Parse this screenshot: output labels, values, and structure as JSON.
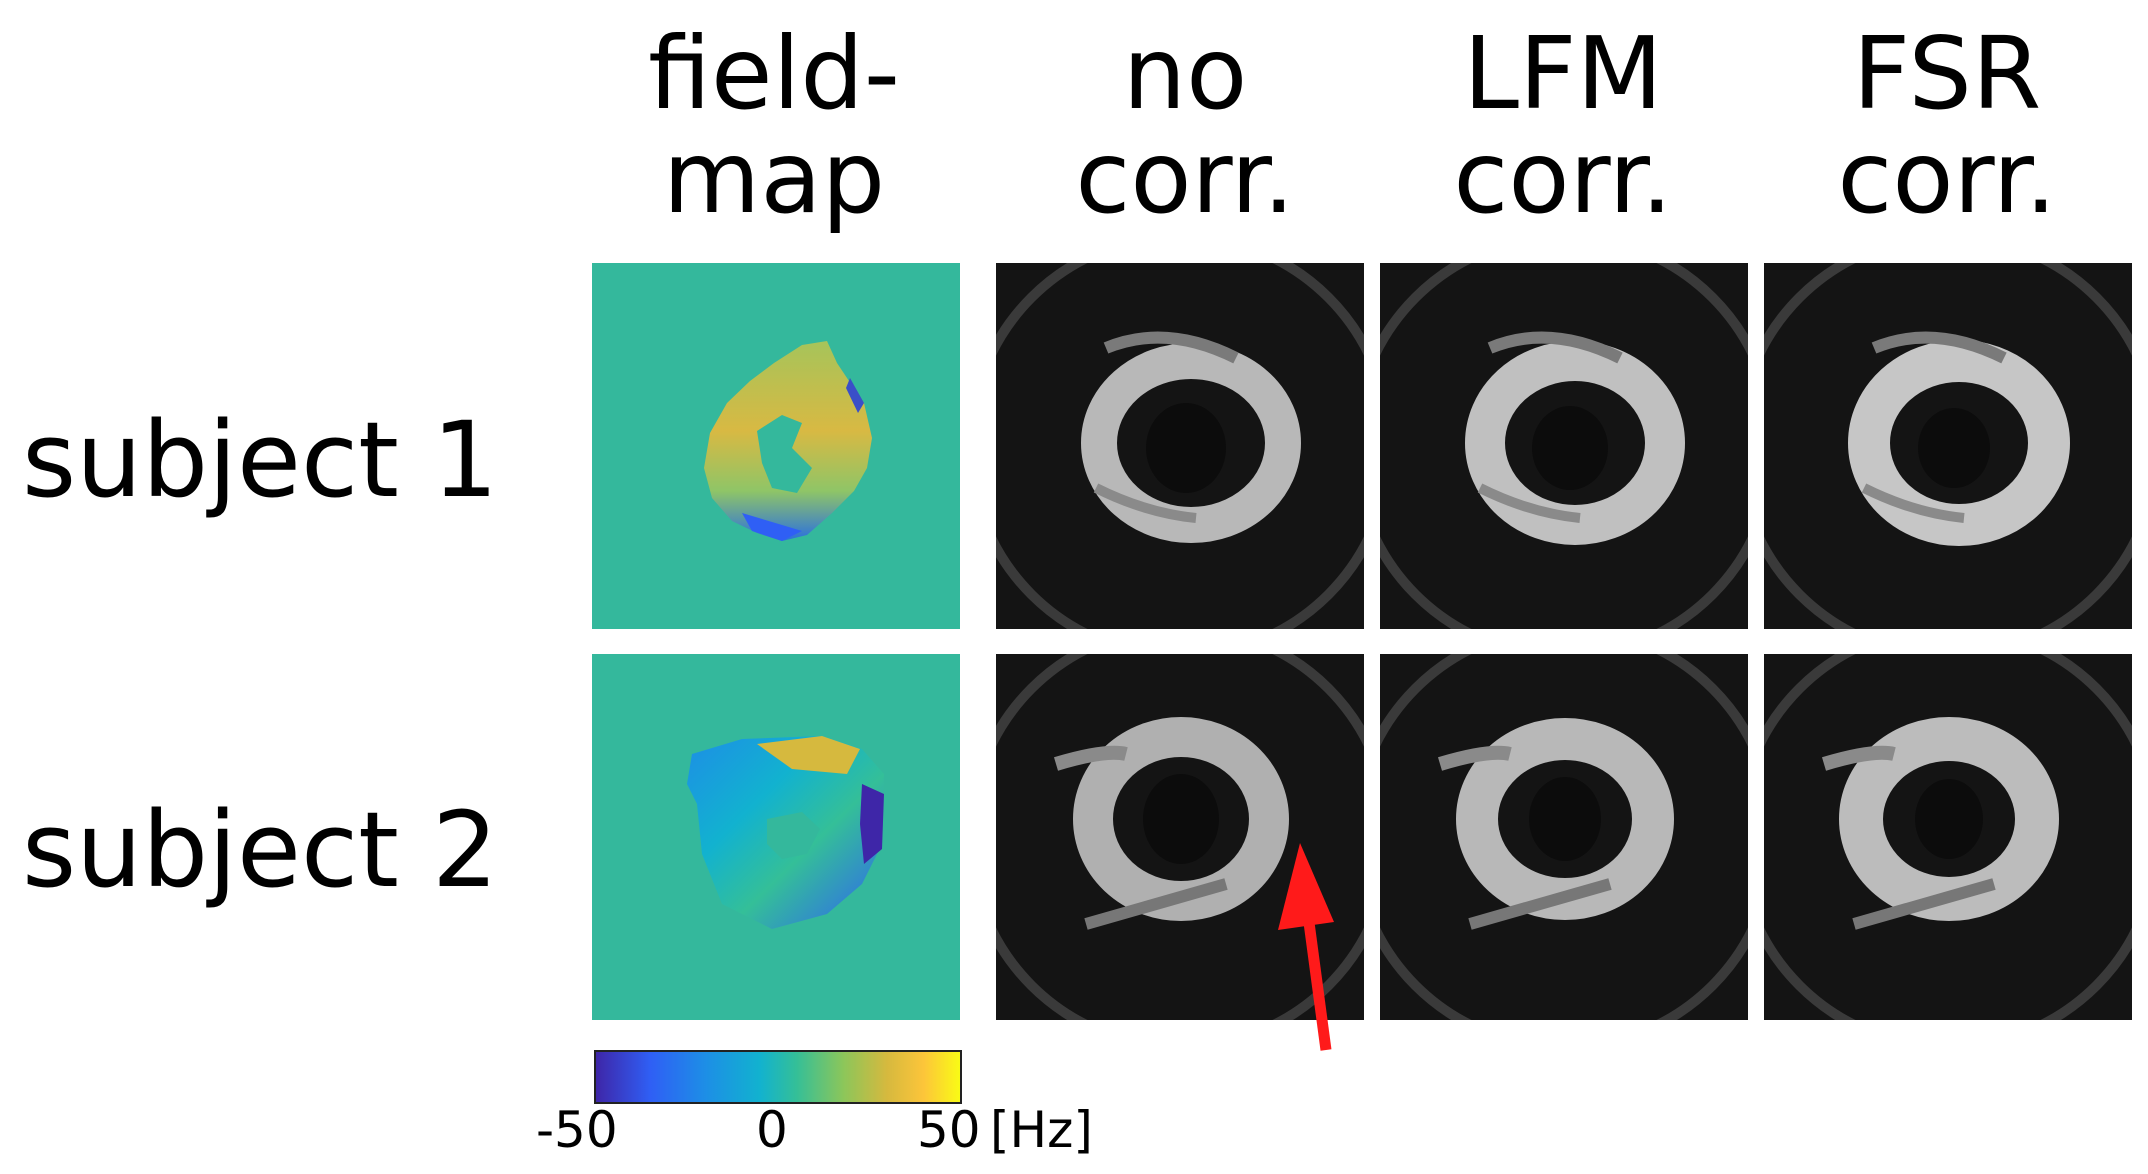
{
  "columns": [
    {
      "line1": "field-",
      "line2": "map"
    },
    {
      "line1": "no",
      "line2": "corr."
    },
    {
      "line1": "LFM",
      "line2": "corr."
    },
    {
      "line1": "FSR",
      "line2": "corr."
    }
  ],
  "rows": [
    "subject 1",
    "subject 2"
  ],
  "colorbar": {
    "min_label": "-50",
    "mid_label": "0",
    "max_label": "50",
    "unit": "[Hz]",
    "min": -50,
    "max": 50
  },
  "colors": {
    "fieldmap_background": "#34b89c",
    "mri_background": "#141414",
    "arrow": "#ff1a1a"
  }
}
